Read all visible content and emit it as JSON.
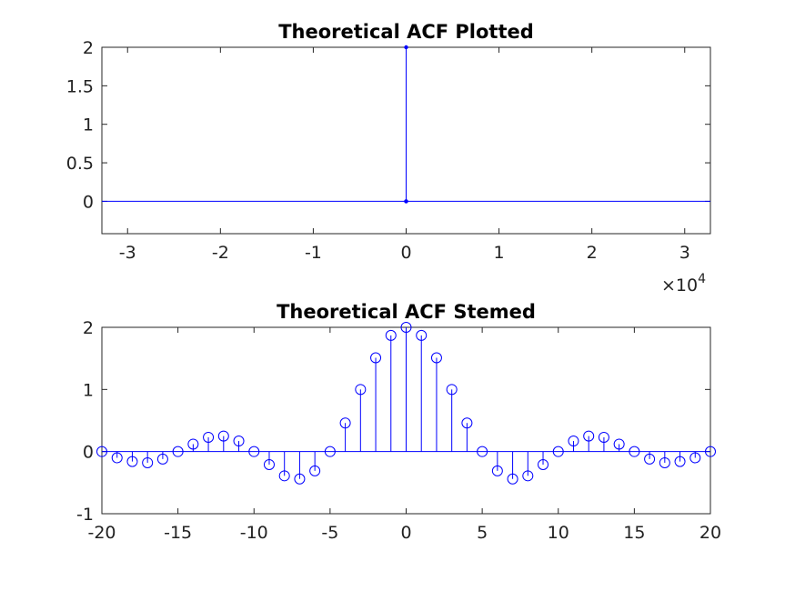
{
  "chart_data": [
    {
      "type": "line",
      "title": "Theoretical ACF Plotted",
      "xlabel": "",
      "ylabel": "",
      "xlim": [
        -32767,
        32767
      ],
      "ylim": [
        -0.42,
        2
      ],
      "xticks": [
        -30000,
        -20000,
        -10000,
        0,
        10000,
        20000,
        30000
      ],
      "xtick_labels": [
        "-3",
        "-2",
        "-1",
        "0",
        "1",
        "2",
        "3"
      ],
      "x_exponent_label": "×10",
      "x_exponent": "4",
      "yticks": [
        0,
        0.5,
        1,
        1.5,
        2
      ],
      "ytick_labels": [
        "0",
        "0.5",
        "1",
        "1.5",
        "2"
      ],
      "grid": false,
      "color": "#0000ff",
      "series": [
        {
          "x": [
            -32767,
            -1,
            0,
            1,
            32767
          ],
          "y": [
            0,
            0,
            2,
            0,
            0
          ]
        }
      ]
    },
    {
      "type": "stem",
      "title": "Theoretical ACF Stemed",
      "xlabel": "",
      "ylabel": "",
      "xlim": [
        -20,
        20
      ],
      "ylim": [
        -1,
        2
      ],
      "xticks": [
        -20,
        -15,
        -10,
        -5,
        0,
        5,
        10,
        15,
        20
      ],
      "xtick_labels": [
        "-20",
        "-15",
        "-10",
        "-5",
        "0",
        "5",
        "10",
        "15",
        "20"
      ],
      "yticks": [
        -1,
        0,
        1,
        2
      ],
      "ytick_labels": [
        "-1",
        "0",
        "1",
        "2"
      ],
      "grid": false,
      "color": "#0000ff",
      "marker": "circle",
      "x": [
        -20,
        -19,
        -18,
        -17,
        -16,
        -15,
        -14,
        -13,
        -12,
        -11,
        -10,
        -9,
        -8,
        -7,
        -6,
        -5,
        -4,
        -3,
        -2,
        -1,
        0,
        1,
        2,
        3,
        4,
        5,
        6,
        7,
        8,
        9,
        10,
        11,
        12,
        13,
        14,
        15,
        16,
        17,
        18,
        19,
        20
      ],
      "y": [
        0,
        -0.1,
        -0.16,
        -0.18,
        -0.12,
        0,
        0.12,
        0.23,
        0.25,
        0.17,
        0,
        -0.21,
        -0.39,
        -0.44,
        -0.31,
        0,
        0.46,
        1,
        1.51,
        1.87,
        2,
        1.87,
        1.51,
        1,
        0.46,
        0,
        -0.31,
        -0.44,
        -0.39,
        -0.21,
        0,
        0.17,
        0.25,
        0.23,
        0.12,
        0,
        -0.12,
        -0.18,
        -0.16,
        -0.1,
        0
      ]
    }
  ]
}
